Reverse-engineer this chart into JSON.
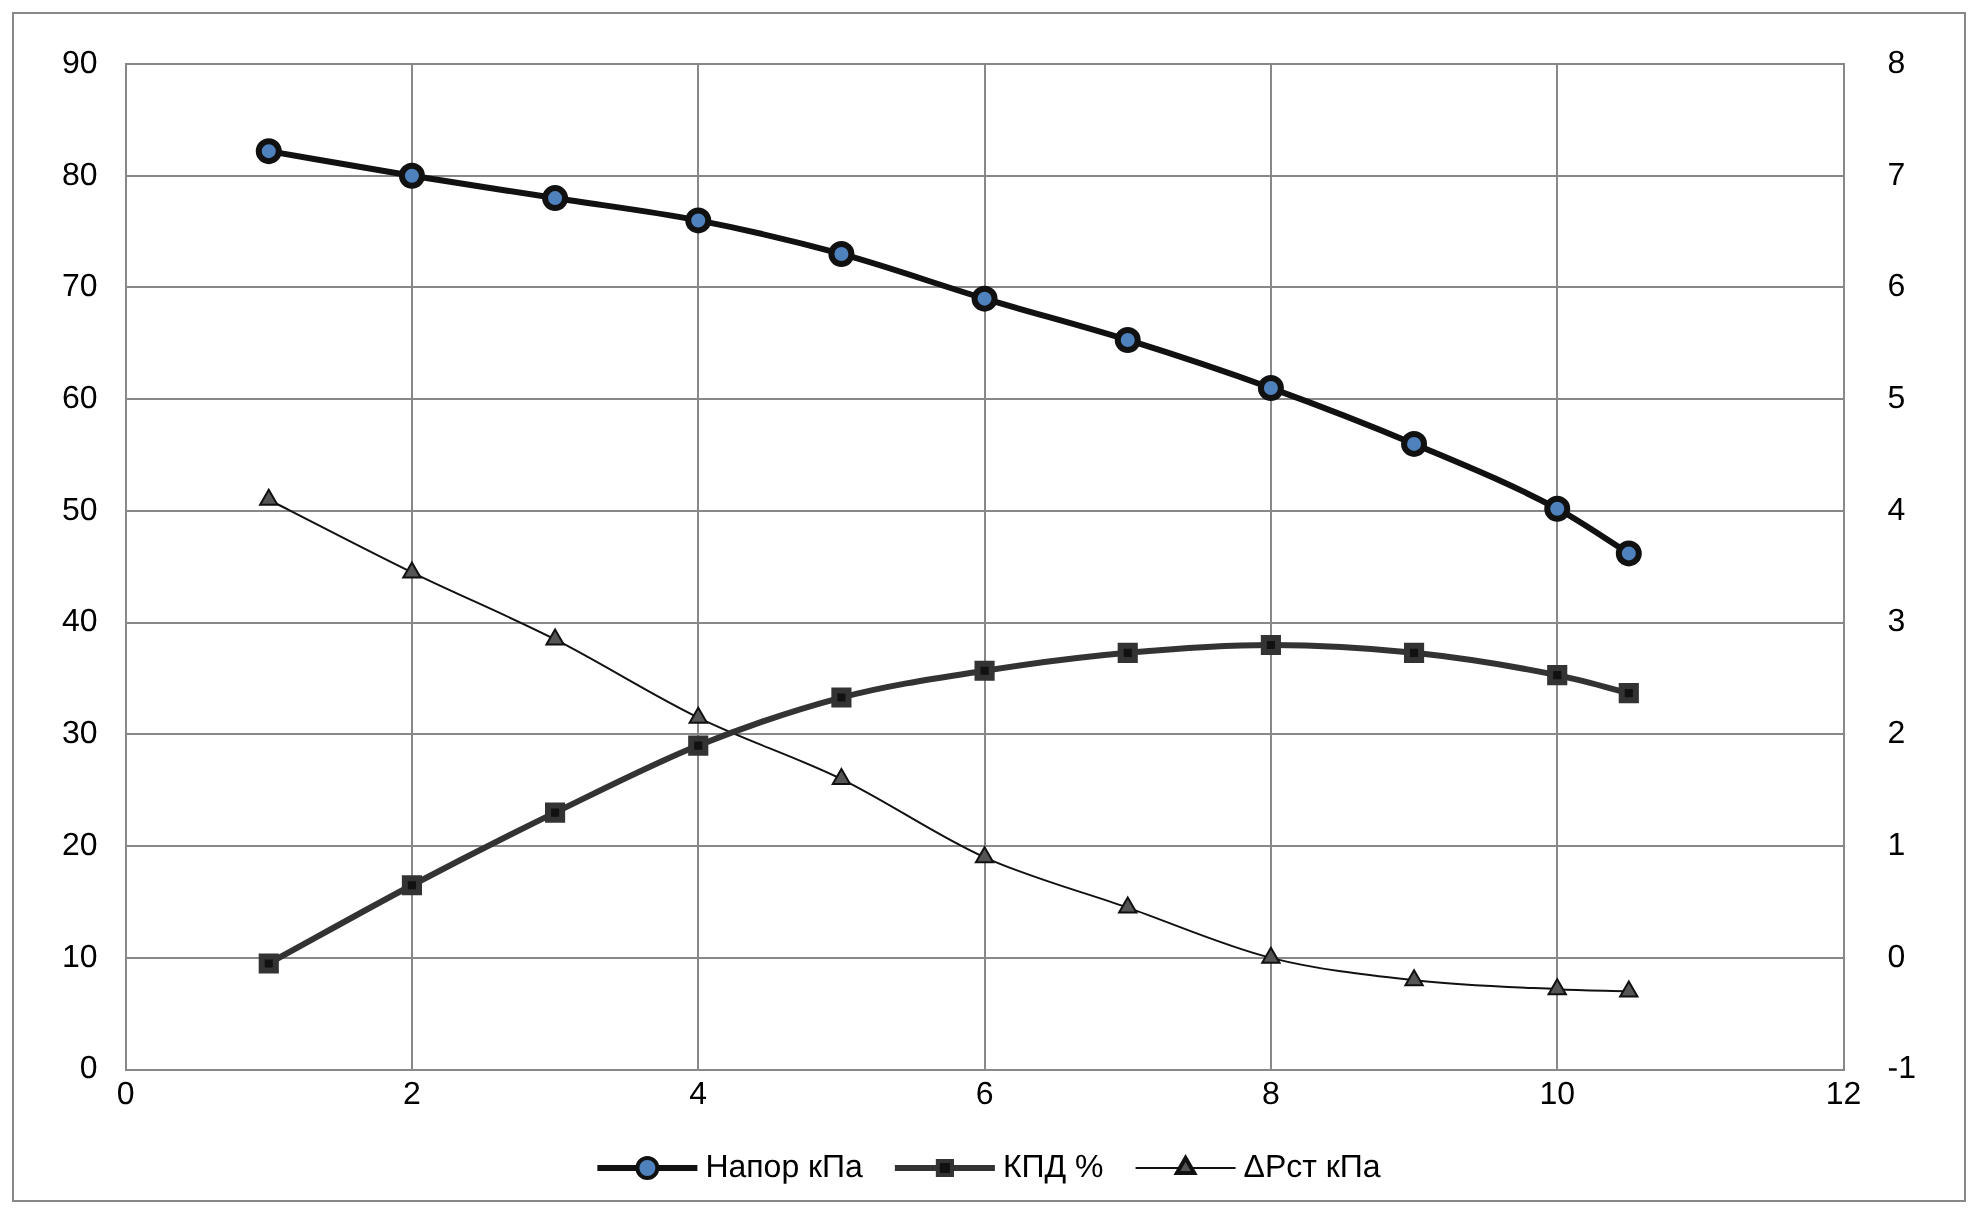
{
  "chart_data": {
    "type": "line",
    "x": [
      1,
      2,
      3,
      4,
      5,
      6,
      7,
      8,
      9,
      10,
      10.5
    ],
    "series": [
      {
        "name": "Напор кПа",
        "color": "#111111",
        "marker": "circle",
        "values": [
          82.2,
          80,
          78,
          76,
          73,
          69,
          65.3,
          61,
          56,
          50.2,
          46.2
        ]
      },
      {
        "name": "КПД %",
        "color": "#333333",
        "marker": "square",
        "values": [
          9.5,
          16.5,
          23,
          29,
          33.3,
          35.7,
          37.3,
          38,
          37.3,
          35.3,
          33.7
        ]
      },
      {
        "name": "ΔРст кПа",
        "color": "#111111",
        "marker": "triangle",
        "axis": "y2",
        "values": [
          4.1,
          3.45,
          2.85,
          2.15,
          1.6,
          0.9,
          0.45,
          0.0,
          -0.2,
          -0.28,
          -0.3
        ]
      }
    ],
    "xlim": [
      0,
      12
    ],
    "xticks": [
      0,
      2,
      4,
      6,
      8,
      10,
      12
    ],
    "ylim": [
      0,
      90
    ],
    "yticks": [
      0,
      10,
      20,
      30,
      40,
      50,
      60,
      70,
      80,
      90
    ],
    "y2lim": [
      -1,
      8
    ],
    "y2ticks": [
      -1,
      0,
      1,
      2,
      3,
      4,
      5,
      6,
      7,
      8
    ],
    "grid": true,
    "legend": "bottom",
    "line_style": "solid"
  }
}
